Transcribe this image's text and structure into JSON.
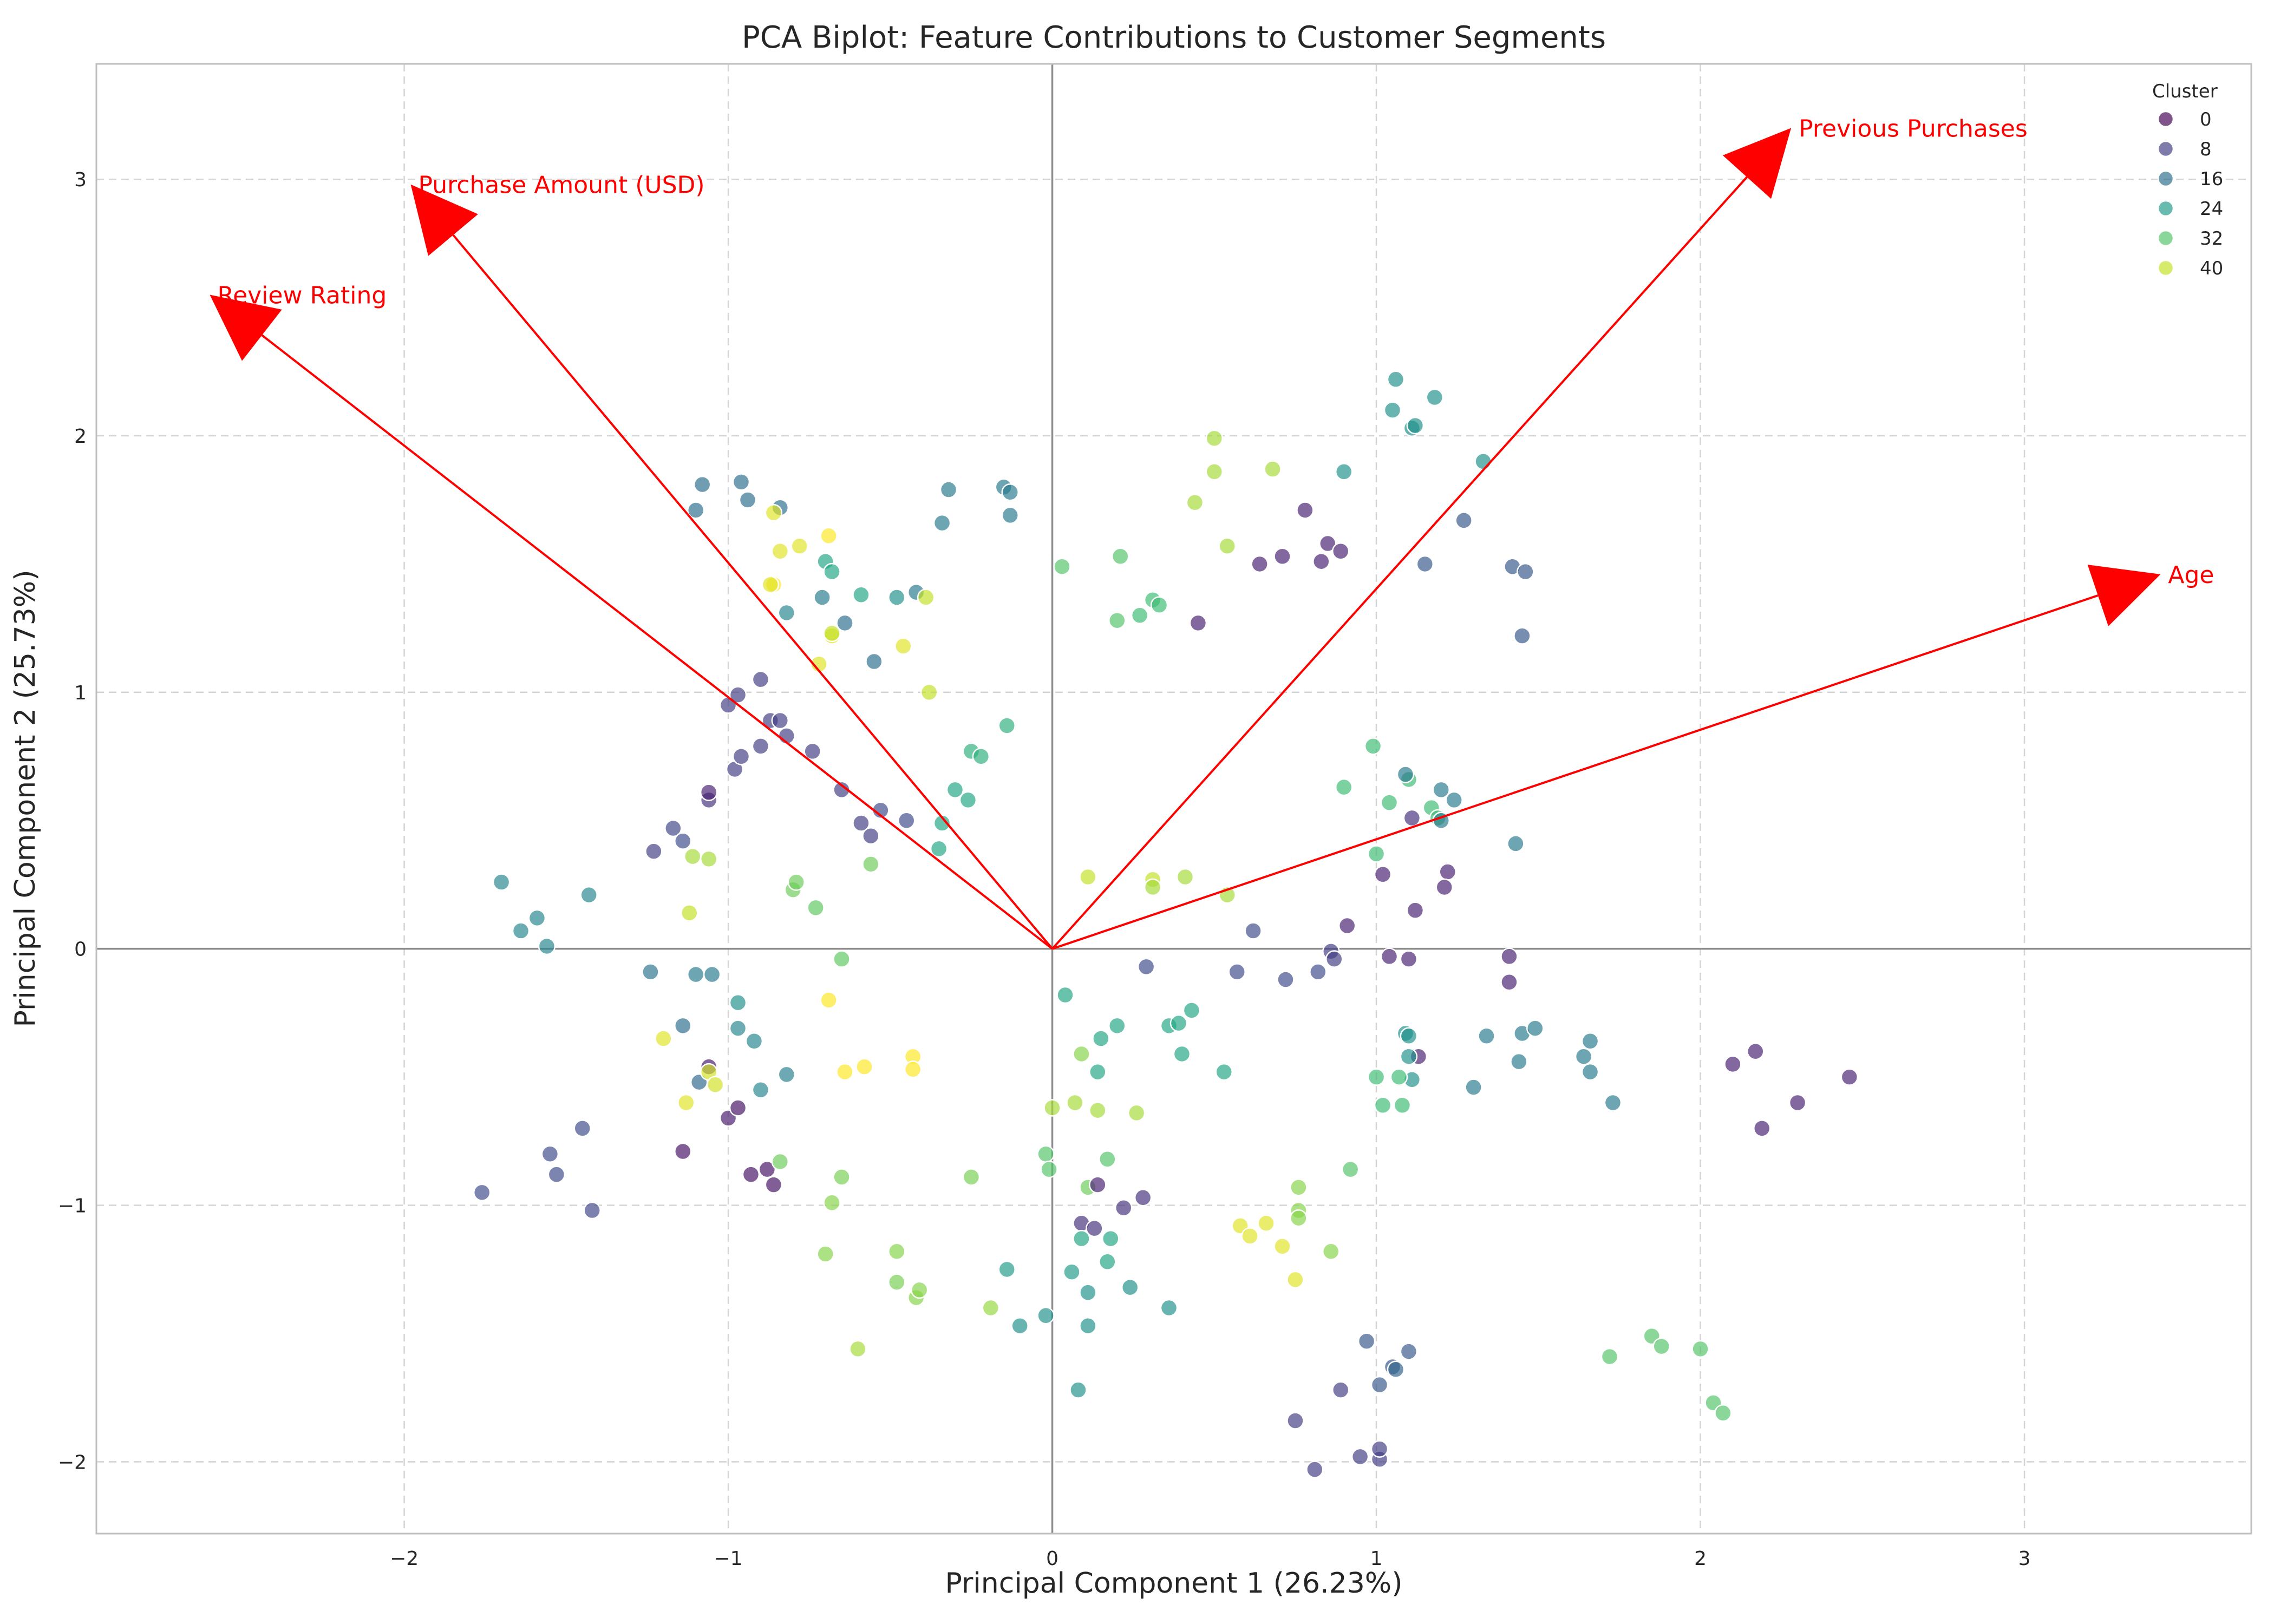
{
  "chart_data": {
    "type": "scatter",
    "title": "PCA Biplot: Feature Contributions to Customer Segments",
    "xlabel": "Principal Component 1 (26.23%)",
    "ylabel": "Principal Component 2 (25.73%)",
    "xlim": [
      -2.95,
      3.7
    ],
    "ylim": [
      -2.28,
      3.45
    ],
    "xticks": [
      -2,
      -1,
      0,
      1,
      2,
      3
    ],
    "yticks": [
      -2,
      -1,
      0,
      1,
      2,
      3
    ],
    "grid": true,
    "legend": {
      "title": "Cluster",
      "position": "top-right",
      "labels": [
        "0",
        "8",
        "16",
        "24",
        "32",
        "40"
      ]
    },
    "colormap": "viridis",
    "loadings": [
      {
        "label": "Review Rating",
        "x": -2.6,
        "y": 2.55
      },
      {
        "label": "Purchase Amount (USD)",
        "x": -1.98,
        "y": 2.98
      },
      {
        "label": "Previous Purchases",
        "x": 2.28,
        "y": 3.2
      },
      {
        "label": "Age",
        "x": 3.42,
        "y": 1.46
      }
    ],
    "points": [
      [
        -1.76,
        -0.95,
        10
      ],
      [
        -1.55,
        -0.8,
        10
      ],
      [
        -1.53,
        -0.88,
        10
      ],
      [
        -1.45,
        -0.7,
        10
      ],
      [
        -1.42,
        -1.02,
        9
      ],
      [
        -1.7,
        0.26,
        20
      ],
      [
        -1.64,
        0.07,
        20
      ],
      [
        -1.59,
        0.12,
        20
      ],
      [
        -1.56,
        0.01,
        20
      ],
      [
        -1.43,
        0.21,
        20
      ],
      [
        -1.24,
        -0.09,
        17
      ],
      [
        -1.14,
        -0.3,
        16
      ],
      [
        -1.1,
        -0.1,
        18
      ],
      [
        -1.05,
        -0.1,
        18
      ],
      [
        -1.09,
        -0.52,
        15
      ],
      [
        -1.23,
        0.38,
        8
      ],
      [
        -1.17,
        0.47,
        9
      ],
      [
        -1.14,
        0.42,
        10
      ],
      [
        -1.06,
        0.58,
        6
      ],
      [
        -1.06,
        0.61,
        4
      ],
      [
        -1.14,
        -0.79,
        2
      ],
      [
        -1.06,
        -0.46,
        3
      ],
      [
        -1.0,
        -0.66,
        3
      ],
      [
        -0.97,
        -0.62,
        2
      ],
      [
        -0.93,
        -0.88,
        2
      ],
      [
        -0.88,
        -0.86,
        2
      ],
      [
        -0.86,
        -0.92,
        2
      ],
      [
        -1.2,
        -0.35,
        42
      ],
      [
        -1.13,
        -0.6,
        42
      ],
      [
        -1.06,
        -0.48,
        41
      ],
      [
        -1.04,
        -0.53,
        41
      ],
      [
        -1.12,
        0.14,
        40
      ],
      [
        -1.11,
        0.36,
        38
      ],
      [
        -1.06,
        0.35,
        38
      ],
      [
        -0.97,
        -0.21,
        22
      ],
      [
        -0.97,
        -0.31,
        20
      ],
      [
        -0.92,
        -0.36,
        20
      ],
      [
        -0.9,
        -0.55,
        20
      ],
      [
        -0.82,
        -0.49,
        19
      ],
      [
        -0.84,
        -0.83,
        34
      ],
      [
        -0.68,
        -0.99,
        36
      ],
      [
        -0.65,
        -0.89,
        35
      ],
      [
        -0.7,
        -1.19,
        36
      ],
      [
        -0.6,
        -1.56,
        38
      ],
      [
        -0.48,
        -1.18,
        36
      ],
      [
        -0.48,
        -1.3,
        35
      ],
      [
        -0.42,
        -1.36,
        36
      ],
      [
        -0.41,
        -1.33,
        36
      ],
      [
        -0.25,
        -0.89,
        35
      ],
      [
        -0.19,
        -1.4,
        37
      ],
      [
        -0.14,
        -1.25,
        24
      ],
      [
        -0.1,
        -1.47,
        22
      ],
      [
        -0.02,
        -1.43,
        22
      ],
      [
        -0.02,
        -0.8,
        32
      ],
      [
        -0.01,
        -0.86,
        32
      ],
      [
        0.0,
        -0.62,
        38
      ],
      [
        -0.65,
        -0.04,
        33
      ],
      [
        -0.73,
        0.16,
        33
      ],
      [
        -0.8,
        0.23,
        34
      ],
      [
        -0.79,
        0.26,
        34
      ],
      [
        -0.56,
        0.33,
        34
      ],
      [
        -0.69,
        -0.2,
        44
      ],
      [
        -0.64,
        -0.48,
        44
      ],
      [
        -0.58,
        -0.46,
        44
      ],
      [
        -0.43,
        -0.42,
        44
      ],
      [
        -0.43,
        -0.47,
        44
      ],
      [
        -1.1,
        1.71,
        16
      ],
      [
        -1.08,
        1.81,
        16
      ],
      [
        -0.96,
        1.82,
        16
      ],
      [
        -0.94,
        1.75,
        16
      ],
      [
        -0.84,
        1.72,
        16
      ],
      [
        -0.82,
        1.31,
        20
      ],
      [
        -0.71,
        1.37,
        18
      ],
      [
        -0.64,
        1.27,
        16
      ],
      [
        -0.55,
        1.12,
        16
      ],
      [
        -0.48,
        1.37,
        22
      ],
      [
        -0.42,
        1.39,
        18
      ],
      [
        -0.34,
        1.66,
        18
      ],
      [
        -0.32,
        1.79,
        18
      ],
      [
        -0.15,
        1.8,
        18
      ],
      [
        -0.13,
        1.69,
        18
      ],
      [
        -0.13,
        1.78,
        18
      ],
      [
        -0.7,
        1.51,
        26
      ],
      [
        -0.68,
        1.47,
        26
      ],
      [
        -0.59,
        1.38,
        26
      ],
      [
        -0.86,
        1.7,
        42
      ],
      [
        -0.84,
        1.55,
        42
      ],
      [
        -0.78,
        1.57,
        42
      ],
      [
        -0.69,
        1.61,
        44
      ],
      [
        -0.86,
        1.42,
        44
      ],
      [
        -0.87,
        1.42,
        42
      ],
      [
        -0.72,
        1.11,
        42
      ],
      [
        -0.68,
        1.22,
        42
      ],
      [
        -0.68,
        1.23,
        40
      ],
      [
        -0.46,
        1.18,
        42
      ],
      [
        -0.39,
        1.37,
        40
      ],
      [
        -0.38,
        1.0,
        40
      ],
      [
        -1.0,
        0.95,
        8
      ],
      [
        -0.97,
        0.99,
        8
      ],
      [
        -0.9,
        1.05,
        8
      ],
      [
        -0.98,
        0.7,
        8
      ],
      [
        -0.96,
        0.75,
        8
      ],
      [
        -0.9,
        0.79,
        8
      ],
      [
        -0.87,
        0.89,
        8
      ],
      [
        -0.84,
        0.89,
        8
      ],
      [
        -0.82,
        0.83,
        8
      ],
      [
        -0.74,
        0.77,
        8
      ],
      [
        -0.65,
        0.62,
        8
      ],
      [
        -0.59,
        0.49,
        8
      ],
      [
        -0.56,
        0.44,
        8
      ],
      [
        -0.53,
        0.54,
        10
      ],
      [
        -0.45,
        0.5,
        10
      ],
      [
        -0.35,
        0.39,
        26
      ],
      [
        -0.34,
        0.49,
        26
      ],
      [
        -0.3,
        0.62,
        26
      ],
      [
        -0.26,
        0.58,
        26
      ],
      [
        -0.25,
        0.77,
        28
      ],
      [
        -0.22,
        0.75,
        28
      ],
      [
        -0.14,
        0.87,
        28
      ],
      [
        0.03,
        1.49,
        32
      ],
      [
        0.21,
        1.53,
        32
      ],
      [
        0.2,
        1.28,
        32
      ],
      [
        0.27,
        1.3,
        30
      ],
      [
        0.31,
        1.36,
        30
      ],
      [
        0.33,
        1.34,
        30
      ],
      [
        0.44,
        1.74,
        38
      ],
      [
        0.5,
        1.86,
        38
      ],
      [
        0.5,
        1.99,
        38
      ],
      [
        0.54,
        1.57,
        38
      ],
      [
        0.68,
        1.87,
        38
      ],
      [
        0.45,
        1.27,
        4
      ],
      [
        0.64,
        1.5,
        4
      ],
      [
        0.71,
        1.53,
        4
      ],
      [
        0.78,
        1.71,
        4
      ],
      [
        0.83,
        1.51,
        4
      ],
      [
        0.85,
        1.58,
        4
      ],
      [
        0.89,
        1.55,
        4
      ],
      [
        0.9,
        1.86,
        22
      ],
      [
        1.06,
        2.22,
        22
      ],
      [
        1.05,
        2.1,
        22
      ],
      [
        1.11,
        2.03,
        22
      ],
      [
        1.12,
        2.04,
        22
      ],
      [
        1.18,
        2.15,
        22
      ],
      [
        1.33,
        1.9,
        22
      ],
      [
        1.15,
        1.5,
        12
      ],
      [
        1.27,
        1.67,
        12
      ],
      [
        1.42,
        1.49,
        12
      ],
      [
        1.46,
        1.47,
        12
      ],
      [
        1.45,
        1.22,
        12
      ],
      [
        0.99,
        0.79,
        30
      ],
      [
        1.04,
        0.57,
        30
      ],
      [
        1.1,
        0.66,
        30
      ],
      [
        1.17,
        0.55,
        30
      ],
      [
        1.19,
        0.51,
        30
      ],
      [
        0.9,
        0.63,
        30
      ],
      [
        1.09,
        0.68,
        18
      ],
      [
        1.2,
        0.5,
        18
      ],
      [
        1.2,
        0.62,
        18
      ],
      [
        1.24,
        0.58,
        18
      ],
      [
        1.11,
        0.51,
        6
      ],
      [
        1.22,
        0.3,
        4
      ],
      [
        1.21,
        0.24,
        4
      ],
      [
        1.02,
        0.29,
        4
      ],
      [
        1.12,
        0.15,
        4
      ],
      [
        0.91,
        0.09,
        4
      ],
      [
        1.0,
        0.37,
        30
      ],
      [
        1.43,
        0.41,
        18
      ],
      [
        0.11,
        0.28,
        40
      ],
      [
        0.31,
        0.27,
        40
      ],
      [
        0.31,
        0.24,
        38
      ],
      [
        0.41,
        0.28,
        38
      ],
      [
        0.54,
        0.21,
        38
      ],
      [
        0.29,
        -0.07,
        10
      ],
      [
        0.57,
        -0.09,
        10
      ],
      [
        0.62,
        0.07,
        10
      ],
      [
        0.72,
        -0.12,
        10
      ],
      [
        0.82,
        -0.09,
        10
      ],
      [
        0.86,
        -0.01,
        8
      ],
      [
        0.87,
        -0.04,
        8
      ],
      [
        1.04,
        -0.03,
        4
      ],
      [
        1.1,
        -0.04,
        4
      ],
      [
        1.41,
        -0.03,
        4
      ],
      [
        1.41,
        -0.13,
        4
      ],
      [
        1.13,
        -0.42,
        4
      ],
      [
        0.04,
        -0.18,
        26
      ],
      [
        0.15,
        -0.35,
        26
      ],
      [
        0.2,
        -0.3,
        26
      ],
      [
        0.36,
        -0.3,
        26
      ],
      [
        0.39,
        -0.29,
        26
      ],
      [
        0.43,
        -0.24,
        26
      ],
      [
        0.4,
        -0.41,
        26
      ],
      [
        0.53,
        -0.48,
        26
      ],
      [
        0.14,
        -0.48,
        26
      ],
      [
        0.09,
        -0.41,
        36
      ],
      [
        0.07,
        -0.6,
        38
      ],
      [
        0.14,
        -0.63,
        38
      ],
      [
        0.26,
        -0.64,
        38
      ],
      [
        0.17,
        -0.82,
        32
      ],
      [
        0.11,
        -0.93,
        34
      ],
      [
        0.14,
        -0.92,
        4
      ],
      [
        0.09,
        -1.07,
        6
      ],
      [
        0.13,
        -1.09,
        6
      ],
      [
        0.22,
        -1.01,
        6
      ],
      [
        0.28,
        -0.97,
        6
      ],
      [
        0.09,
        -1.13,
        26
      ],
      [
        0.18,
        -1.13,
        26
      ],
      [
        0.17,
        -1.22,
        26
      ],
      [
        0.06,
        -1.26,
        24
      ],
      [
        0.11,
        -1.34,
        22
      ],
      [
        0.24,
        -1.32,
        22
      ],
      [
        0.36,
        -1.4,
        22
      ],
      [
        0.11,
        -1.47,
        22
      ],
      [
        0.08,
        -1.72,
        22
      ],
      [
        0.58,
        -1.08,
        42
      ],
      [
        0.61,
        -1.12,
        42
      ],
      [
        0.66,
        -1.07,
        42
      ],
      [
        0.71,
        -1.16,
        42
      ],
      [
        0.75,
        -1.29,
        42
      ],
      [
        0.76,
        -1.02,
        36
      ],
      [
        0.76,
        -1.05,
        36
      ],
      [
        0.76,
        -0.93,
        36
      ],
      [
        0.86,
        -1.18,
        36
      ],
      [
        0.92,
        -0.86,
        32
      ],
      [
        1.09,
        -0.33,
        22
      ],
      [
        1.1,
        -0.34,
        22
      ],
      [
        1.1,
        -0.42,
        22
      ],
      [
        1.11,
        -0.51,
        22
      ],
      [
        1.0,
        -0.5,
        30
      ],
      [
        1.02,
        -0.61,
        30
      ],
      [
        1.07,
        -0.5,
        30
      ],
      [
        1.08,
        -0.61,
        30
      ],
      [
        1.3,
        -0.54,
        18
      ],
      [
        1.34,
        -0.34,
        18
      ],
      [
        1.44,
        -0.44,
        18
      ],
      [
        1.45,
        -0.33,
        18
      ],
      [
        1.49,
        -0.31,
        18
      ],
      [
        1.64,
        -0.42,
        18
      ],
      [
        1.66,
        -0.48,
        18
      ],
      [
        1.66,
        -0.36,
        18
      ],
      [
        1.73,
        -0.6,
        18
      ],
      [
        2.1,
        -0.45,
        4
      ],
      [
        2.17,
        -0.4,
        4
      ],
      [
        2.19,
        -0.7,
        4
      ],
      [
        2.3,
        -0.6,
        4
      ],
      [
        2.46,
        -0.5,
        4
      ],
      [
        0.97,
        -1.53,
        12
      ],
      [
        1.01,
        -1.7,
        12
      ],
      [
        1.05,
        -1.63,
        12
      ],
      [
        1.06,
        -1.64,
        14
      ],
      [
        1.1,
        -1.57,
        12
      ],
      [
        0.75,
        -1.84,
        8
      ],
      [
        0.81,
        -2.03,
        8
      ],
      [
        0.89,
        -1.72,
        8
      ],
      [
        0.95,
        -1.98,
        8
      ],
      [
        1.01,
        -1.99,
        8
      ],
      [
        1.01,
        -1.95,
        8
      ],
      [
        1.72,
        -1.59,
        32
      ],
      [
        1.85,
        -1.51,
        32
      ],
      [
        1.88,
        -1.55,
        32
      ],
      [
        2.0,
        -1.56,
        32
      ],
      [
        2.04,
        -1.77,
        32
      ],
      [
        2.07,
        -1.81,
        32
      ]
    ]
  }
}
